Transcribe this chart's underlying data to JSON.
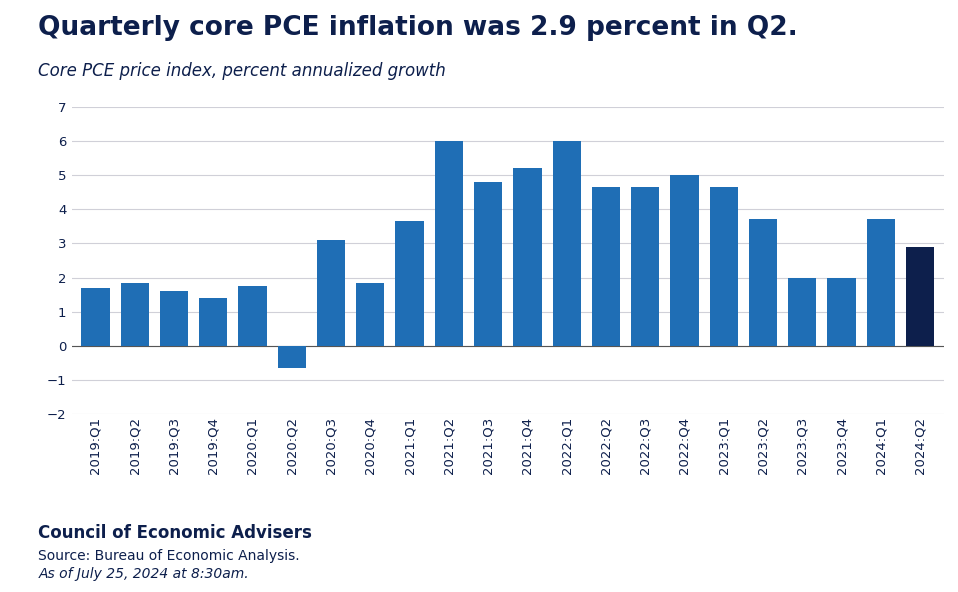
{
  "title": "Quarterly core PCE inflation was 2.9 percent in Q2.",
  "subtitle": "Core PCE price index, percent annualized growth",
  "categories": [
    "2019:Q1",
    "2019:Q2",
    "2019:Q3",
    "2019:Q4",
    "2020:Q1",
    "2020:Q2",
    "2020:Q3",
    "2020:Q4",
    "2021:Q1",
    "2021:Q2",
    "2021:Q3",
    "2021:Q4",
    "2022:Q1",
    "2022:Q2",
    "2022:Q3",
    "2022:Q4",
    "2023:Q1",
    "2023:Q2",
    "2023:Q3",
    "2023:Q4",
    "2024:Q1",
    "2024:Q2"
  ],
  "values": [
    1.7,
    1.85,
    1.6,
    1.4,
    1.75,
    -0.65,
    3.1,
    1.85,
    3.65,
    6.0,
    4.8,
    5.2,
    6.0,
    4.65,
    4.65,
    5.0,
    4.65,
    3.7,
    2.0,
    2.0,
    3.7,
    2.9
  ],
  "bar_color_default": "#1f6eb5",
  "bar_color_highlight": "#0d1f4c",
  "highlight_index": 21,
  "ylim": [
    -2,
    7
  ],
  "yticks": [
    -2,
    -1,
    0,
    1,
    2,
    3,
    4,
    5,
    6,
    7
  ],
  "background_color": "#ffffff",
  "title_color": "#0d1f4c",
  "subtitle_color": "#0d1f4c",
  "footer_bold": "Council of Economic Advisers",
  "footer_source": "Source: Bureau of Economic Analysis.",
  "footer_date": "As of July 25, 2024 at 8:30am.",
  "grid_color": "#d0d0d8",
  "title_fontsize": 19,
  "subtitle_fontsize": 12,
  "tick_fontsize": 9.5,
  "footer_fontsize": 12,
  "footer_source_fontsize": 10,
  "footer_date_fontsize": 10
}
